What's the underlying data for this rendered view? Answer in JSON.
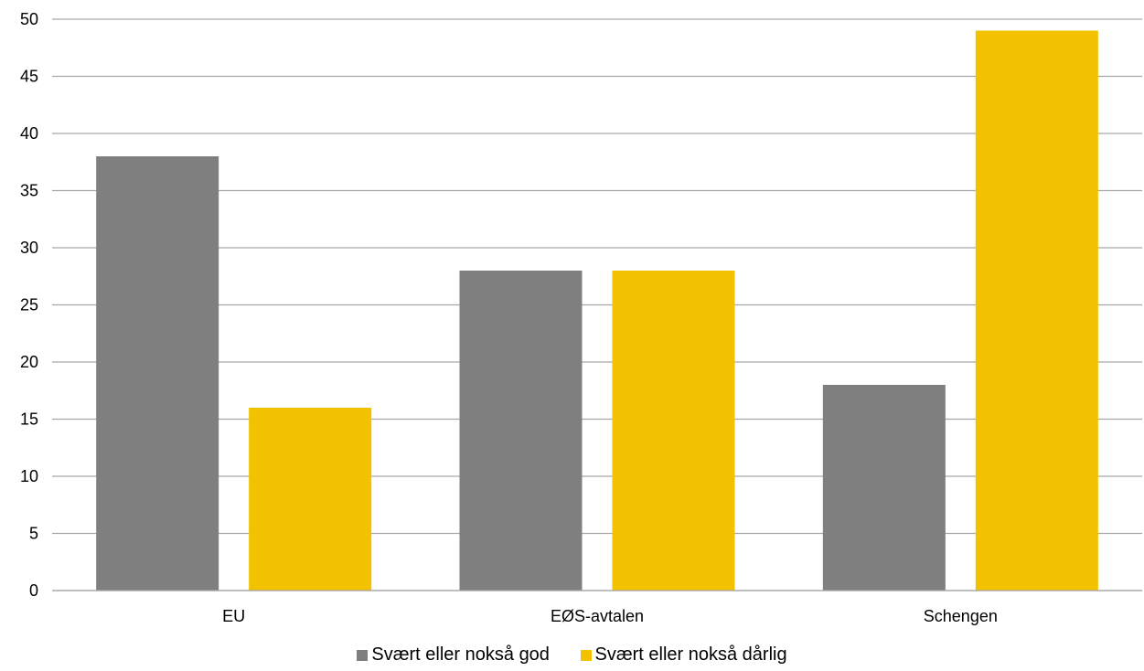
{
  "chart_data": {
    "type": "bar",
    "categories": [
      "EU",
      "EØS-avtalen",
      "Schengen"
    ],
    "series": [
      {
        "name": "Svært eller nokså god",
        "values": [
          38,
          28,
          18
        ],
        "color": "#7f7f7f"
      },
      {
        "name": "Svært eller nokså dårlig",
        "values": [
          16,
          28,
          49
        ],
        "color": "#f2c200"
      }
    ],
    "ylim": [
      0,
      50
    ],
    "yticks": [
      0,
      5,
      10,
      15,
      20,
      25,
      30,
      35,
      40,
      45,
      50
    ],
    "grid": true,
    "gridColor": "#a6a6a6",
    "legend": "bottom",
    "title": "",
    "xlabel": "",
    "ylabel": ""
  }
}
